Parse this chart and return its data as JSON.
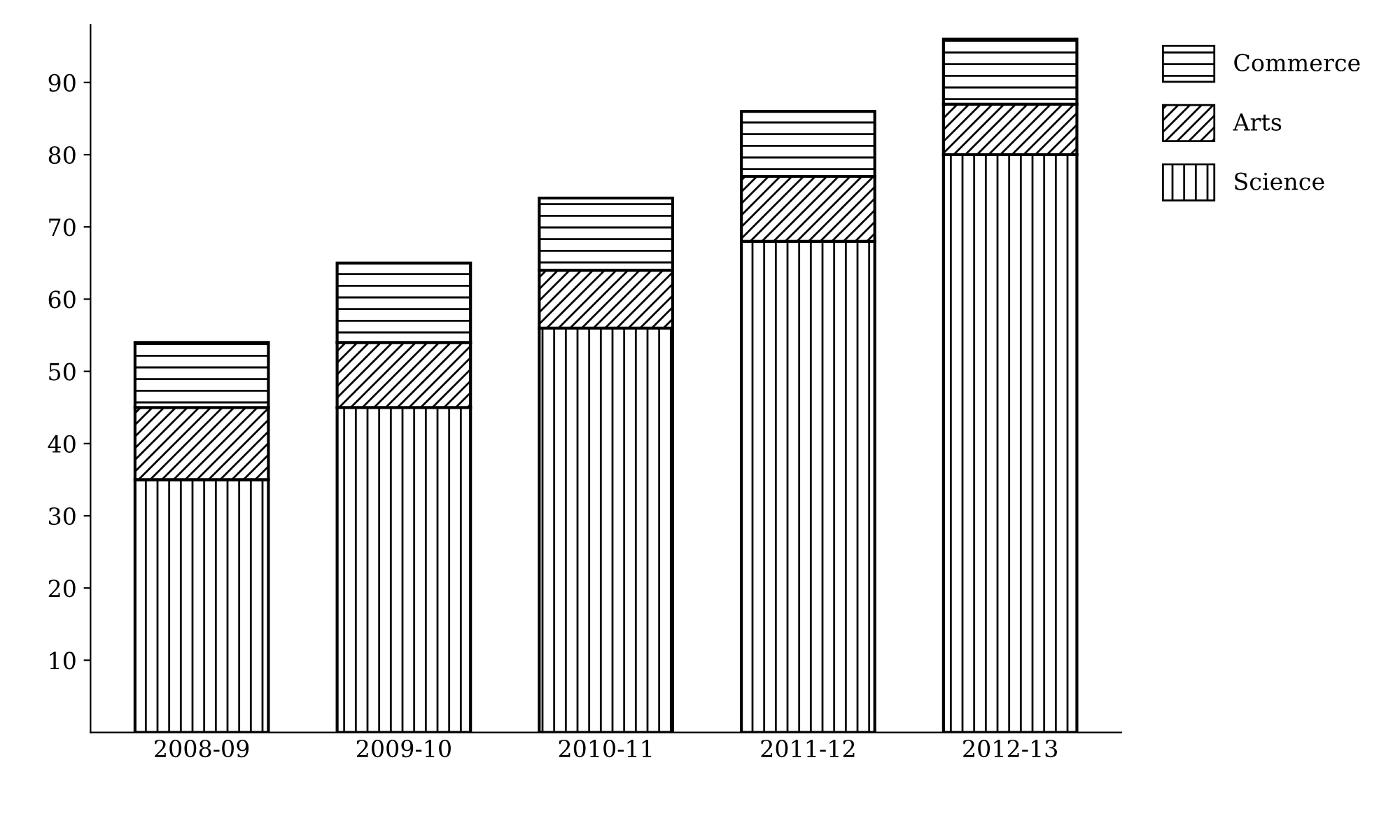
{
  "chart_data": {
    "type": "bar",
    "stacked": true,
    "categories": [
      "2008-09",
      "2009-10",
      "2010-11",
      "2011-12",
      "2012-13"
    ],
    "series": [
      {
        "name": "Science",
        "color": "#000000",
        "values": [
          35,
          45,
          56,
          68,
          80
        ]
      },
      {
        "name": "Arts",
        "color": "#000000",
        "values": [
          10,
          9,
          8,
          9,
          7
        ]
      },
      {
        "name": "Commerce",
        "color": "#000000",
        "values": [
          9,
          11,
          10,
          9,
          9
        ]
      }
    ],
    "ylim": [
      0,
      98
    ],
    "yticks": [
      10,
      20,
      30,
      40,
      50,
      60,
      70,
      80,
      90
    ],
    "grid": false,
    "legend": "top right"
  }
}
